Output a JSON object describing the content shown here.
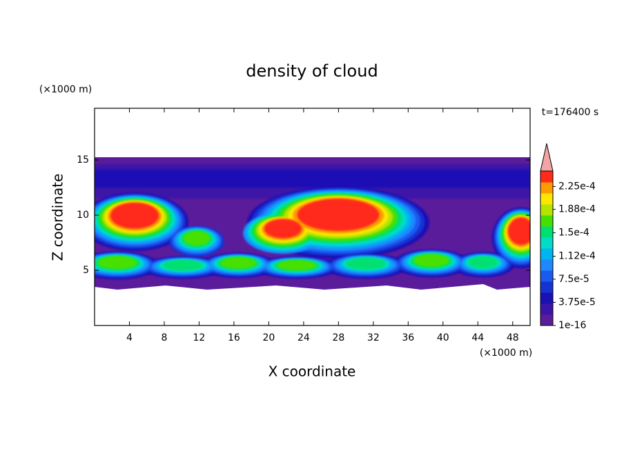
{
  "chart_data": {
    "type": "contour",
    "title": "density of cloud",
    "x_label": "X coordinate",
    "y_label": "Z coordinate",
    "x_unit": "(×1000 m)",
    "y_unit": "(×1000 m)",
    "annotation": "t=176400 s",
    "xlim": [
      0,
      50
    ],
    "ylim": [
      0,
      20
    ],
    "xticks": [
      4,
      8,
      12,
      16,
      20,
      24,
      28,
      32,
      36,
      40,
      44,
      48
    ],
    "yticks": [
      5,
      10,
      15
    ],
    "colorbar": {
      "lim": [
        1e-16,
        0.00025
      ],
      "ticks": [
        {
          "value": 1e-16,
          "label": "1e-16"
        },
        {
          "value": 3.75e-05,
          "label": "3.75e-5"
        },
        {
          "value": 7.5e-05,
          "label": "7.5e-5"
        },
        {
          "value": 0.000112,
          "label": "1.12e-4"
        },
        {
          "value": 0.00015,
          "label": "1.5e-4"
        },
        {
          "value": 0.000188,
          "label": "1.88e-4"
        },
        {
          "value": 0.000225,
          "label": "2.25e-4"
        }
      ],
      "colors": [
        "#5b1c9c",
        "#3c14a8",
        "#1a10b4",
        "#1433d0",
        "#1b5af0",
        "#1e88ff",
        "#00b4f0",
        "#00dcc8",
        "#00e070",
        "#46e000",
        "#b4e400",
        "#ffe600",
        "#ff9a00",
        "#ff2a1a"
      ],
      "extend_color": "#f4a4a4"
    }
  }
}
